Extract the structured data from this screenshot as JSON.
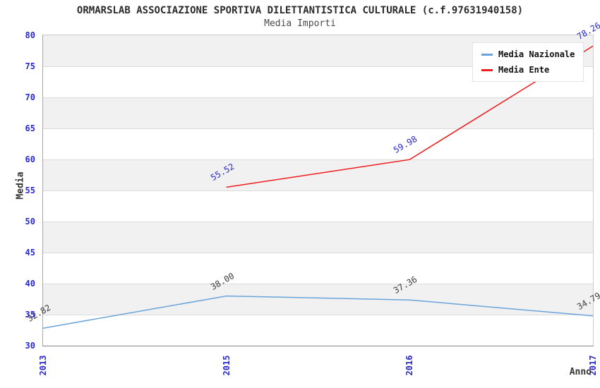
{
  "chart_data": {
    "type": "line",
    "title": "ORMARSLAB ASSOCIAZIONE SPORTIVA DILETTANTISTICA CULTURALE (c.f.97631940158)",
    "subtitle": "Media Importi",
    "xlabel": "Anno",
    "ylabel": "Media",
    "categories": [
      "2013",
      "2015",
      "2016",
      "2017"
    ],
    "series": [
      {
        "name": "Media Nazionale",
        "color": "#6aa4da",
        "label_color": "#3d3d3d",
        "values": [
          32.82,
          38.0,
          37.36,
          34.79
        ],
        "labels": [
          "32.82",
          "38.00",
          "37.36",
          "34.79"
        ]
      },
      {
        "name": "Media Ente",
        "color": "#ee1c1c",
        "label_color": "#2929cc",
        "values": [
          null,
          55.52,
          59.98,
          78.26
        ],
        "labels": [
          null,
          "55.52",
          "59.98",
          "78.26"
        ]
      }
    ],
    "ylim": [
      30,
      80
    ],
    "yticks": [
      30,
      35,
      40,
      45,
      50,
      55,
      60,
      65,
      70,
      75,
      80
    ],
    "grid": "horizontal-bands",
    "band_colors": [
      "#f1f1f1",
      "#ffffff"
    ],
    "legend_position": "top-right",
    "tick_label_color": "#2929cc"
  }
}
